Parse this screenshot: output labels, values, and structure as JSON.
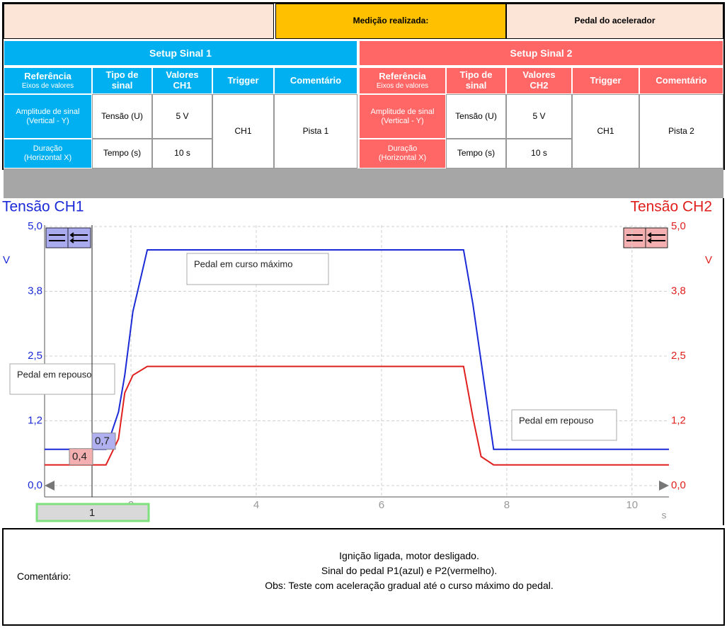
{
  "header": {
    "measurement_label": "Medição realizada:",
    "measurement_value": "Pedal do acelerador"
  },
  "setups": [
    {
      "title": "Setup Sinal 1",
      "columns": [
        {
          "label": "Referência",
          "sub": "Eixos de valores"
        },
        {
          "label": "Tipo de sinal"
        },
        {
          "label": "Valores CH1"
        },
        {
          "label": "Trigger"
        },
        {
          "label": "Comentário"
        }
      ],
      "rows": [
        {
          "label": "Amplitude de sinal",
          "sub": "(Vertical - Y)",
          "type": "Tensão (U)",
          "value": "5 V"
        },
        {
          "label": "Duração",
          "sub": "(Horizontal X)",
          "type": "Tempo (s)",
          "value": "10 s"
        }
      ],
      "trigger": "CH1",
      "comment": "Pista 1"
    },
    {
      "title": "Setup Sinal 2",
      "columns": [
        {
          "label": "Referência",
          "sub": "Eixos de valores"
        },
        {
          "label": "Tipo de sinal"
        },
        {
          "label": "Valores CH2"
        },
        {
          "label": "Trigger"
        },
        {
          "label": "Comentário"
        }
      ],
      "rows": [
        {
          "label": "Amplitude de sinal",
          "sub": "(Vertical - Y)",
          "type": "Tensão (U)",
          "value": "5 V"
        },
        {
          "label": "Duração",
          "sub": "(Horizontal X)",
          "type": "Tempo (s)",
          "value": "10 s"
        }
      ],
      "trigger": "CH1",
      "comment": "Pista 2"
    }
  ],
  "chart_data": {
    "type": "line",
    "y_label": "Tensão CH1",
    "y2_label": "Tensão CH2",
    "y_unit": "V",
    "y2_unit": "V",
    "x_unit": "s",
    "x": [
      0.62,
      1.6,
      1.8,
      1.9,
      2.03,
      2.26,
      7.31,
      7.46,
      7.59,
      7.79,
      10.59
    ],
    "series": [
      {
        "name": "CH1",
        "color": "#1a2ad6",
        "values": [
          0.7,
          0.7,
          1.42,
          2.13,
          3.36,
          4.55,
          4.55,
          3.5,
          2.4,
          0.7,
          0.7
        ]
      },
      {
        "name": "CH2",
        "color": "#e0201e",
        "axis": "y2",
        "values": [
          0.4,
          0.4,
          0.9,
          1.79,
          2.13,
          2.3,
          2.3,
          1.31,
          0.56,
          0.4,
          0.4
        ]
      }
    ],
    "xlim": [
      0.62,
      10.59
    ],
    "xticks": [
      2,
      4,
      6,
      8,
      10
    ],
    "ylim": [
      0,
      5
    ],
    "yticks": [
      {
        "value": 0,
        "label": "0,0"
      },
      {
        "value": 1.25,
        "label": "1,2"
      },
      {
        "value": 2.5,
        "label": "2,5"
      },
      {
        "value": 3.75,
        "label": "3,8"
      },
      {
        "value": 5,
        "label": "5,0"
      }
    ],
    "y2lim": [
      0,
      5
    ],
    "y2ticks": [
      {
        "value": 0,
        "label": "0,0"
      },
      {
        "value": 1.25,
        "label": "1,2"
      },
      {
        "value": 2.5,
        "label": "2,5"
      },
      {
        "value": 3.75,
        "label": "3,8"
      },
      {
        "value": 5,
        "label": "5,0"
      }
    ],
    "grid": true,
    "cursor": {
      "label": "1",
      "readings": [
        {
          "value": 0.7,
          "label": "0,7"
        },
        {
          "value": 0.4,
          "label": "0,4"
        }
      ]
    },
    "annotations": [
      "Pedal em curso máximo",
      "Pedal em repouso",
      "Pedal em repouso"
    ]
  },
  "comment": {
    "label": "Comentário:",
    "lines": [
      "Ignição ligada, motor desligado.",
      "Sinal do pedal P1(azul) e P2(vermelho).",
      "Obs: Teste com aceleração gradual até o curso máximo do pedal."
    ]
  }
}
